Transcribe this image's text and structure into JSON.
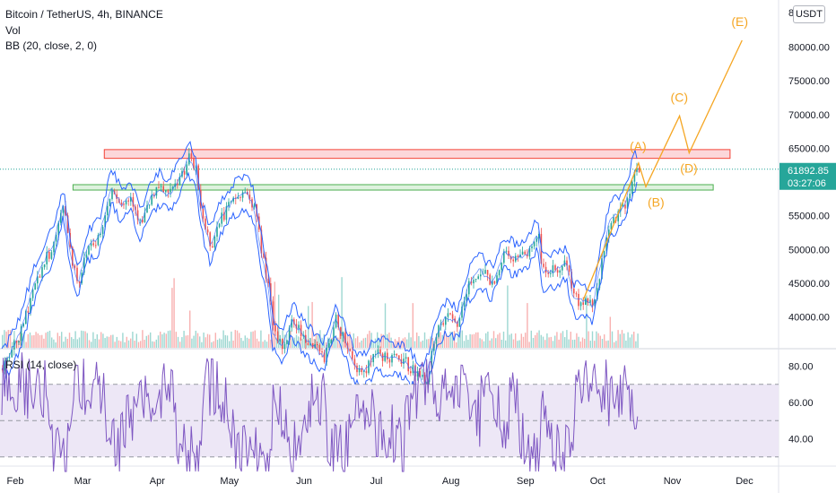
{
  "legend": {
    "title": "Bitcoin / TetherUS, 4h, BINANCE",
    "vol": "Vol",
    "bb": "BB (20, close, 2, 0)",
    "rsi": "RSI (14, close)"
  },
  "currency_button": "USDT",
  "colors": {
    "price_line": "#2962ff",
    "candle_up": "#26a69a",
    "candle_down": "#ef5350",
    "wave": "#f5a623",
    "resistance_fill": "#fbd0d3",
    "resistance_stroke": "#f44336",
    "support_fill": "#d8f0d8",
    "support_stroke": "#4caf50",
    "rsi_line": "#7e57c2",
    "rsi_band": "#ede7f6",
    "last_price_bg": "#26a69a"
  },
  "chart_data": {
    "type": "candlestick",
    "symbol": "Bitcoin / TetherUS",
    "timeframe": "4h",
    "exchange": "BINANCE",
    "x_tick_labels": [
      "Feb",
      "Mar",
      "Apr",
      "May",
      "Jun",
      "Jul",
      "Aug",
      "Sep",
      "Oct",
      "Nov",
      "Dec"
    ],
    "y_tick_labels": [
      "40000.00",
      "45000.00",
      "50000.00",
      "55000.00",
      "60000.00",
      "65000.00",
      "70000.00",
      "75000.00",
      "80000.00"
    ],
    "y_top_label": "8",
    "y_range": [
      35000,
      84000
    ],
    "last_price": "61892.85",
    "countdown": "03:27:06",
    "price_series": [
      {
        "date": "2021-01-25",
        "close": 31500
      },
      {
        "date": "2021-01-29",
        "close": 34000
      },
      {
        "date": "2021-02-03",
        "close": 37500
      },
      {
        "date": "2021-02-08",
        "close": 44000
      },
      {
        "date": "2021-02-12",
        "close": 47500
      },
      {
        "date": "2021-02-17",
        "close": 51000
      },
      {
        "date": "2021-02-21",
        "close": 57000
      },
      {
        "date": "2021-02-24",
        "close": 49000
      },
      {
        "date": "2021-02-27",
        "close": 45000
      },
      {
        "date": "2021-03-03",
        "close": 50500
      },
      {
        "date": "2021-03-08",
        "close": 52000
      },
      {
        "date": "2021-03-13",
        "close": 59500
      },
      {
        "date": "2021-03-17",
        "close": 56500
      },
      {
        "date": "2021-03-21",
        "close": 58000
      },
      {
        "date": "2021-03-25",
        "close": 53500
      },
      {
        "date": "2021-03-29",
        "close": 57500
      },
      {
        "date": "2021-04-02",
        "close": 59000
      },
      {
        "date": "2021-04-06",
        "close": 58000
      },
      {
        "date": "2021-04-10",
        "close": 60500
      },
      {
        "date": "2021-04-14",
        "close": 63500
      },
      {
        "date": "2021-04-17",
        "close": 61500
      },
      {
        "date": "2021-04-19",
        "close": 55500
      },
      {
        "date": "2021-04-23",
        "close": 50500
      },
      {
        "date": "2021-04-27",
        "close": 54500
      },
      {
        "date": "2021-05-03",
        "close": 57500
      },
      {
        "date": "2021-05-08",
        "close": 58500
      },
      {
        "date": "2021-05-11",
        "close": 56500
      },
      {
        "date": "2021-05-14",
        "close": 50000
      },
      {
        "date": "2021-05-17",
        "close": 44500
      },
      {
        "date": "2021-05-19",
        "close": 37500
      },
      {
        "date": "2021-05-23",
        "close": 35500
      },
      {
        "date": "2021-05-27",
        "close": 39500
      },
      {
        "date": "2021-06-01",
        "close": 37000
      },
      {
        "date": "2021-06-05",
        "close": 35500
      },
      {
        "date": "2021-06-09",
        "close": 34000
      },
      {
        "date": "2021-06-14",
        "close": 39500
      },
      {
        "date": "2021-06-18",
        "close": 36500
      },
      {
        "date": "2021-06-22",
        "close": 32500
      },
      {
        "date": "2021-06-26",
        "close": 32000
      },
      {
        "date": "2021-07-01",
        "close": 34500
      },
      {
        "date": "2021-07-07",
        "close": 33800
      },
      {
        "date": "2021-07-12",
        "close": 33500
      },
      {
        "date": "2021-07-18",
        "close": 31500
      },
      {
        "date": "2021-07-21",
        "close": 30000
      },
      {
        "date": "2021-07-26",
        "close": 37500
      },
      {
        "date": "2021-07-30",
        "close": 40000
      },
      {
        "date": "2021-08-04",
        "close": 39000
      },
      {
        "date": "2021-08-08",
        "close": 44500
      },
      {
        "date": "2021-08-13",
        "close": 47000
      },
      {
        "date": "2021-08-18",
        "close": 45000
      },
      {
        "date": "2021-08-23",
        "close": 49500
      },
      {
        "date": "2021-08-28",
        "close": 48500
      },
      {
        "date": "2021-09-02",
        "close": 49500
      },
      {
        "date": "2021-09-06",
        "close": 52500
      },
      {
        "date": "2021-09-08",
        "close": 46500
      },
      {
        "date": "2021-09-14",
        "close": 47000
      },
      {
        "date": "2021-09-18",
        "close": 48000
      },
      {
        "date": "2021-09-21",
        "close": 42500
      },
      {
        "date": "2021-09-25",
        "close": 42500
      },
      {
        "date": "2021-09-29",
        "close": 41500
      },
      {
        "date": "2021-10-02",
        "close": 47500
      },
      {
        "date": "2021-10-06",
        "close": 54500
      },
      {
        "date": "2021-10-10",
        "close": 55500
      },
      {
        "date": "2021-10-13",
        "close": 57500
      },
      {
        "date": "2021-10-16",
        "close": 61500
      },
      {
        "date": "2021-10-18",
        "close": 61893
      }
    ],
    "rsi": {
      "label": "RSI (14, close)",
      "y_tick_labels": [
        "40.00",
        "60.00",
        "80.00"
      ],
      "upper_band": 70,
      "middle_band": 50,
      "lower_band": 30
    },
    "zones": [
      {
        "name": "resistance",
        "from": 63500,
        "to": 64800,
        "x_start": "2021-03-10",
        "x_end": "2021-11-25"
      },
      {
        "name": "support",
        "from": 58800,
        "to": 59600,
        "x_start": "2021-02-25",
        "x_end": "2021-11-18"
      }
    ],
    "elliott_wave": [
      {
        "label": "",
        "date": "2021-09-25",
        "price": 42500
      },
      {
        "label": "(A)",
        "date": "2021-10-18",
        "price": 62800
      },
      {
        "label": "(B)",
        "date": "2021-10-21",
        "price": 59300
      },
      {
        "label": "(C)",
        "date": "2021-11-04",
        "price": 69800
      },
      {
        "label": "(D)",
        "date": "2021-11-08",
        "price": 64300
      },
      {
        "label": "(E)",
        "date": "2021-11-30",
        "price": 81000
      }
    ]
  }
}
